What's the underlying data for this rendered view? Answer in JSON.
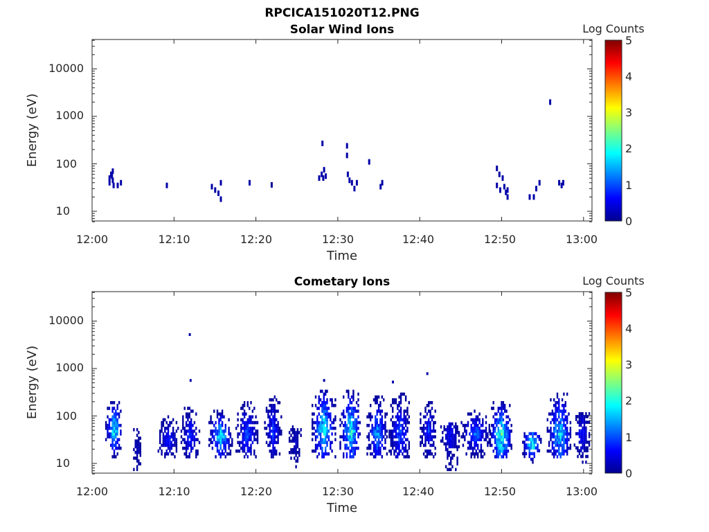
{
  "figure_title": "RPCICA151020T12.PNG",
  "colorbar": {
    "label": "Log Counts",
    "ticks": [
      "0",
      "1",
      "2",
      "3",
      "4",
      "5"
    ],
    "range": [
      0,
      5
    ],
    "colormap": "jet"
  },
  "chart_data": [
    {
      "type": "heatmap",
      "title": "Solar Wind Ions",
      "xlabel": "Time",
      "ylabel": "Energy (eV)",
      "x_ticks": [
        "12:00",
        "12:10",
        "12:20",
        "12:30",
        "12:40",
        "12:50",
        "13:00"
      ],
      "y_ticks": [
        "10",
        "100",
        "1000",
        "10000"
      ],
      "y_scale": "log",
      "xlim_minutes": [
        0,
        60.7
      ],
      "ylim": [
        6,
        45000
      ],
      "cells": [
        [
          2.0,
          50,
          0.2
        ],
        [
          2.0,
          40,
          0.2
        ],
        [
          2.2,
          60,
          0.2
        ],
        [
          2.3,
          55,
          0.2
        ],
        [
          2.4,
          70,
          0.2
        ],
        [
          2.4,
          45,
          0.2
        ],
        [
          2.5,
          35,
          0.2
        ],
        [
          3.0,
          35,
          0.2
        ],
        [
          3.4,
          40,
          0.2
        ],
        [
          9.0,
          35,
          0.2
        ],
        [
          14.5,
          33,
          0.2
        ],
        [
          14.9,
          28,
          0.2
        ],
        [
          15.3,
          24,
          0.2
        ],
        [
          15.6,
          18,
          0.2
        ],
        [
          15.6,
          40,
          0.2
        ],
        [
          19.1,
          40,
          0.2
        ],
        [
          21.8,
          36,
          0.1
        ],
        [
          27.6,
          50,
          0.2
        ],
        [
          27.9,
          60,
          0.2
        ],
        [
          28.1,
          50,
          0.2
        ],
        [
          28.2,
          75,
          0.2
        ],
        [
          28.4,
          55,
          0.2
        ],
        [
          28.0,
          270,
          0.2
        ],
        [
          31.0,
          240,
          0.2
        ],
        [
          31.0,
          150,
          0.2
        ],
        [
          31.1,
          60,
          0.2
        ],
        [
          31.3,
          45,
          0.2
        ],
        [
          31.6,
          40,
          0.2
        ],
        [
          31.9,
          30,
          0.2
        ],
        [
          32.2,
          40,
          0.2
        ],
        [
          33.7,
          110,
          0.2
        ],
        [
          35.1,
          33,
          0.2
        ],
        [
          35.3,
          40,
          0.2
        ],
        [
          49.3,
          80,
          0.2
        ],
        [
          49.3,
          35,
          0.2
        ],
        [
          49.6,
          60,
          0.2
        ],
        [
          49.7,
          28,
          0.2
        ],
        [
          50.0,
          50,
          0.2
        ],
        [
          50.2,
          33,
          0.2
        ],
        [
          50.4,
          25,
          0.2
        ],
        [
          50.6,
          20,
          0.2
        ],
        [
          50.6,
          28,
          0.2
        ],
        [
          53.3,
          20,
          0.2
        ],
        [
          53.8,
          20,
          0.2
        ],
        [
          54.1,
          30,
          0.2
        ],
        [
          54.5,
          40,
          0.2
        ],
        [
          55.8,
          2000,
          0.2
        ],
        [
          56.9,
          40,
          0.2
        ],
        [
          57.2,
          35,
          0.2
        ],
        [
          57.4,
          40,
          0.2
        ]
      ]
    },
    {
      "type": "heatmap",
      "title": "Cometary Ions",
      "xlabel": "Time",
      "ylabel": "Energy (eV)",
      "x_ticks": [
        "12:00",
        "12:10",
        "12:20",
        "12:30",
        "12:40",
        "12:50",
        "13:00"
      ],
      "y_ticks": [
        "10",
        "100",
        "1000",
        "10000"
      ],
      "y_scale": "log",
      "xlim_minutes": [
        0,
        60.7
      ],
      "ylim": [
        6,
        45000
      ],
      "bursts": [
        {
          "t": [
            1.6,
            3.6
          ],
          "e": [
            13,
            200
          ],
          "peak": 1.6,
          "core": 50
        },
        {
          "t": [
            4.8,
            6.0
          ],
          "e": [
            7,
            50
          ],
          "peak": 0.3,
          "core": 20
        },
        {
          "t": [
            8.0,
            10.5
          ],
          "e": [
            13,
            90
          ],
          "peak": 0.6,
          "core": 30
        },
        {
          "t": [
            10.8,
            13.0
          ],
          "e": [
            13,
            150
          ],
          "peak": 0.7,
          "core": 35
        },
        {
          "t": [
            14.2,
            17.0
          ],
          "e": [
            13,
            120
          ],
          "peak": 1.5,
          "core": 35
        },
        {
          "t": [
            17.5,
            20.2
          ],
          "e": [
            13,
            200
          ],
          "peak": 0.8,
          "core": 40
        },
        {
          "t": [
            21.0,
            23.0
          ],
          "e": [
            13,
            250
          ],
          "peak": 0.7,
          "core": 45
        },
        {
          "t": [
            24.0,
            25.5
          ],
          "e": [
            8,
            60
          ],
          "peak": 0.3,
          "core": 25
        },
        {
          "t": [
            26.8,
            29.6
          ],
          "e": [
            13,
            400
          ],
          "peak": 1.5,
          "core": 50
        },
        {
          "t": [
            30.2,
            32.8
          ],
          "e": [
            13,
            350
          ],
          "peak": 1.6,
          "core": 45
        },
        {
          "t": [
            33.5,
            36.0
          ],
          "e": [
            13,
            250
          ],
          "peak": 1.1,
          "core": 40
        },
        {
          "t": [
            36.2,
            38.8
          ],
          "e": [
            13,
            300
          ],
          "peak": 0.8,
          "core": 40
        },
        {
          "t": [
            40.0,
            42.0
          ],
          "e": [
            13,
            200
          ],
          "peak": 0.7,
          "core": 45
        },
        {
          "t": [
            42.5,
            44.8
          ],
          "e": [
            7,
            70
          ],
          "peak": 0.5,
          "core": 35
        },
        {
          "t": [
            45.0,
            48.5
          ],
          "e": [
            13,
            120
          ],
          "peak": 0.9,
          "core": 40
        },
        {
          "t": [
            48.5,
            51.2
          ],
          "e": [
            13,
            200
          ],
          "peak": 1.8,
          "core": 35
        },
        {
          "t": [
            52.5,
            54.8
          ],
          "e": [
            10,
            45
          ],
          "peak": 1.7,
          "core": 25
        },
        {
          "t": [
            55.5,
            58.5
          ],
          "e": [
            13,
            300
          ],
          "peak": 1.4,
          "core": 40
        },
        {
          "t": [
            58.8,
            60.7
          ],
          "e": [
            10,
            120
          ],
          "peak": 0.6,
          "core": 40
        }
      ],
      "isolated_points": [
        [
          11.8,
          5200,
          0.2
        ],
        [
          11.9,
          560,
          0.2
        ],
        [
          40.8,
          780,
          0.2
        ],
        [
          36.6,
          520,
          0.2
        ],
        [
          28.2,
          560,
          0.2
        ]
      ]
    }
  ]
}
